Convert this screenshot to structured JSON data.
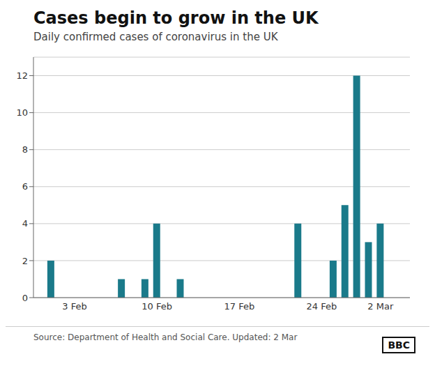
{
  "chart_data": {
    "type": "bar",
    "title": "Cases begin to grow in the UK",
    "subtitle": "Daily confirmed cases of coronavirus in the UK",
    "x": [
      1,
      2,
      3,
      4,
      5,
      6,
      7,
      8,
      9,
      10,
      11,
      12,
      13,
      14,
      15,
      16,
      17,
      18,
      19,
      20,
      21,
      22,
      23,
      24,
      25,
      26,
      27,
      28,
      29,
      30,
      31
    ],
    "values": [
      2,
      0,
      0,
      0,
      0,
      0,
      1,
      0,
      1,
      4,
      0,
      1,
      0,
      0,
      0,
      0,
      0,
      0,
      0,
      0,
      0,
      4,
      0,
      0,
      2,
      5,
      12,
      3,
      4,
      0,
      0
    ],
    "color": "#1a7a8a",
    "xlim": [
      -0.5,
      31.5
    ],
    "xticks": [
      {
        "value": 3,
        "label": "3 Feb"
      },
      {
        "value": 10,
        "label": "10 Feb"
      },
      {
        "value": 17,
        "label": "17 Feb"
      },
      {
        "value": 24,
        "label": "24 Feb"
      },
      {
        "value": 29,
        "label": "2 Mar"
      }
    ],
    "ylim": [
      0,
      13
    ],
    "yticks": [
      0,
      2,
      4,
      6,
      8,
      10,
      12
    ],
    "grid": true,
    "annotations": [
      "Source: Department of Health and Social Care. Updated: 2 Mar",
      "BBC"
    ]
  }
}
